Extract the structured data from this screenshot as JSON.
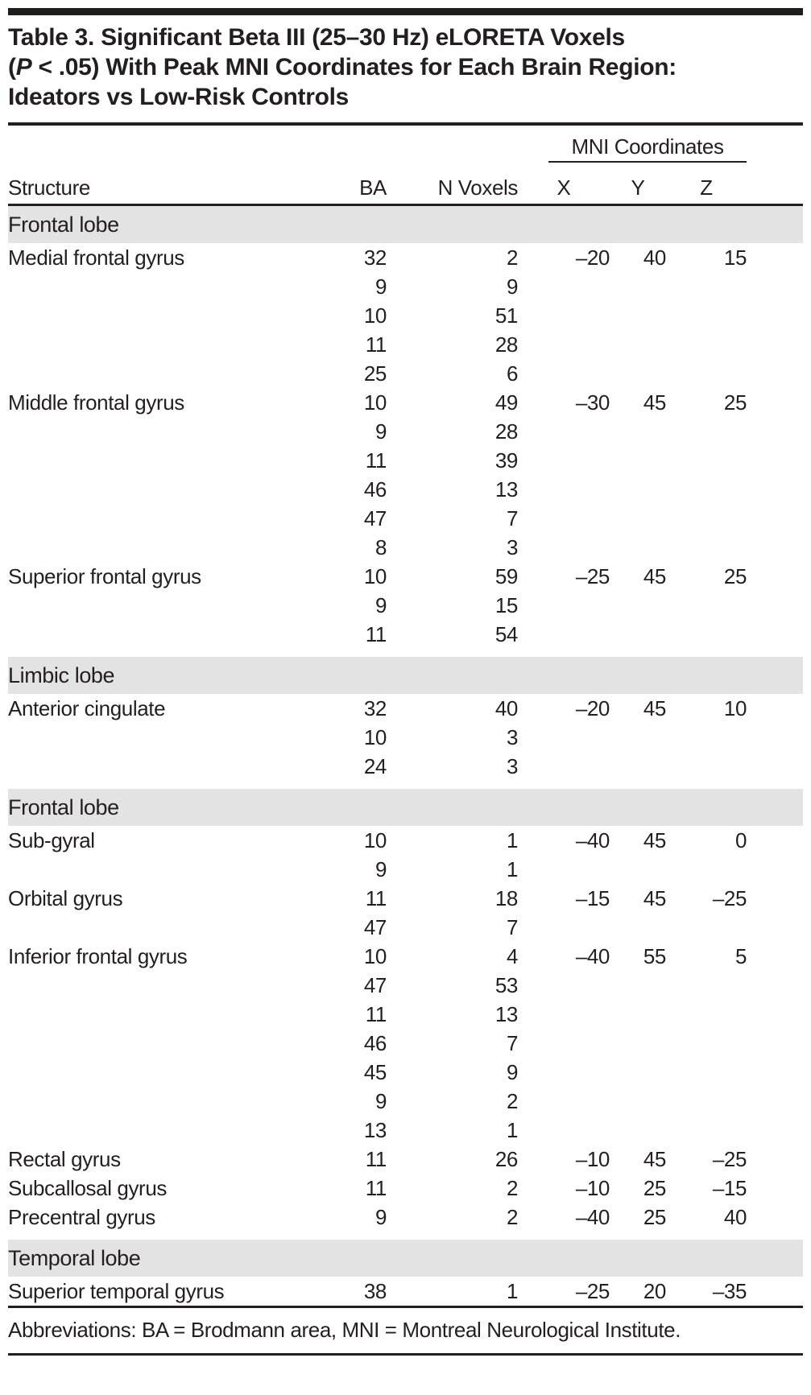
{
  "title": {
    "line1": "Table 3. Significant Beta III (25–30 Hz) eLORETA Voxels",
    "line2_pre": "(",
    "line2_italic": "P",
    "line2_post": " < .05) With Peak MNI Coordinates for Each Brain Region:",
    "line3": "Ideators vs Low-Risk Controls"
  },
  "columns": {
    "structure": "Structure",
    "ba": "BA",
    "n_voxels": "N Voxels",
    "mni_group": "MNI Coordinates",
    "x": "X",
    "y": "Y",
    "z": "Z"
  },
  "sections": [
    {
      "label": "Frontal lobe",
      "rows": [
        {
          "structure": "Medial frontal gyrus",
          "entries": [
            {
              "ba": "32",
              "n": "2",
              "x": "–20",
              "y": "40",
              "z": "15"
            },
            {
              "ba": "9",
              "n": "9"
            },
            {
              "ba": "10",
              "n": "51"
            },
            {
              "ba": "11",
              "n": "28"
            },
            {
              "ba": "25",
              "n": "6"
            }
          ]
        },
        {
          "structure": "Middle frontal gyrus",
          "entries": [
            {
              "ba": "10",
              "n": "49",
              "x": "–30",
              "y": "45",
              "z": "25"
            },
            {
              "ba": "9",
              "n": "28"
            },
            {
              "ba": "11",
              "n": "39"
            },
            {
              "ba": "46",
              "n": "13"
            },
            {
              "ba": "47",
              "n": "7"
            },
            {
              "ba": "8",
              "n": "3"
            }
          ]
        },
        {
          "structure": "Superior frontal gyrus",
          "entries": [
            {
              "ba": "10",
              "n": "59",
              "x": "–25",
              "y": "45",
              "z": "25"
            },
            {
              "ba": "9",
              "n": "15"
            },
            {
              "ba": "11",
              "n": "54"
            }
          ]
        }
      ]
    },
    {
      "label": "Limbic lobe",
      "rows": [
        {
          "structure": "Anterior cingulate",
          "entries": [
            {
              "ba": "32",
              "n": "40",
              "x": "–20",
              "y": "45",
              "z": "10"
            },
            {
              "ba": "10",
              "n": "3"
            },
            {
              "ba": "24",
              "n": "3"
            }
          ]
        }
      ]
    },
    {
      "label": "Frontal lobe",
      "rows": [
        {
          "structure": "Sub-gyral",
          "entries": [
            {
              "ba": "10",
              "n": "1",
              "x": "–40",
              "y": "45",
              "z": "0"
            },
            {
              "ba": "9",
              "n": "1"
            }
          ]
        },
        {
          "structure": "Orbital gyrus",
          "entries": [
            {
              "ba": "11",
              "n": "18",
              "x": "–15",
              "y": "45",
              "z": "–25"
            },
            {
              "ba": "47",
              "n": "7"
            }
          ]
        },
        {
          "structure": "Inferior frontal gyrus",
          "entries": [
            {
              "ba": "10",
              "n": "4",
              "x": "–40",
              "y": "55",
              "z": "5"
            },
            {
              "ba": "47",
              "n": "53"
            },
            {
              "ba": "11",
              "n": "13"
            },
            {
              "ba": "46",
              "n": "7"
            },
            {
              "ba": "45",
              "n": "9"
            },
            {
              "ba": "9",
              "n": "2"
            },
            {
              "ba": "13",
              "n": "1"
            }
          ]
        },
        {
          "structure": "Rectal gyrus",
          "entries": [
            {
              "ba": "11",
              "n": "26",
              "x": "–10",
              "y": "45",
              "z": "–25"
            }
          ]
        },
        {
          "structure": "Subcallosal gyrus",
          "entries": [
            {
              "ba": "11",
              "n": "2",
              "x": "–10",
              "y": "25",
              "z": "–15"
            }
          ]
        },
        {
          "structure": "Precentral gyrus",
          "entries": [
            {
              "ba": "9",
              "n": "2",
              "x": "–40",
              "y": "25",
              "z": "40"
            }
          ]
        }
      ]
    },
    {
      "label": "Temporal lobe",
      "rows": [
        {
          "structure": "Superior temporal gyrus",
          "entries": [
            {
              "ba": "38",
              "n": "1",
              "x": "–25",
              "y": "20",
              "z": "–35"
            }
          ]
        }
      ]
    }
  ],
  "footnote": "Abbreviations: BA = Brodmann area, MNI = Montreal Neurological Institute.",
  "colors": {
    "text": "#231f20",
    "rule": "#231f20",
    "top_bar": "#1d1d1b",
    "section_background": "#e3e3e3",
    "page_background": "#ffffff"
  }
}
